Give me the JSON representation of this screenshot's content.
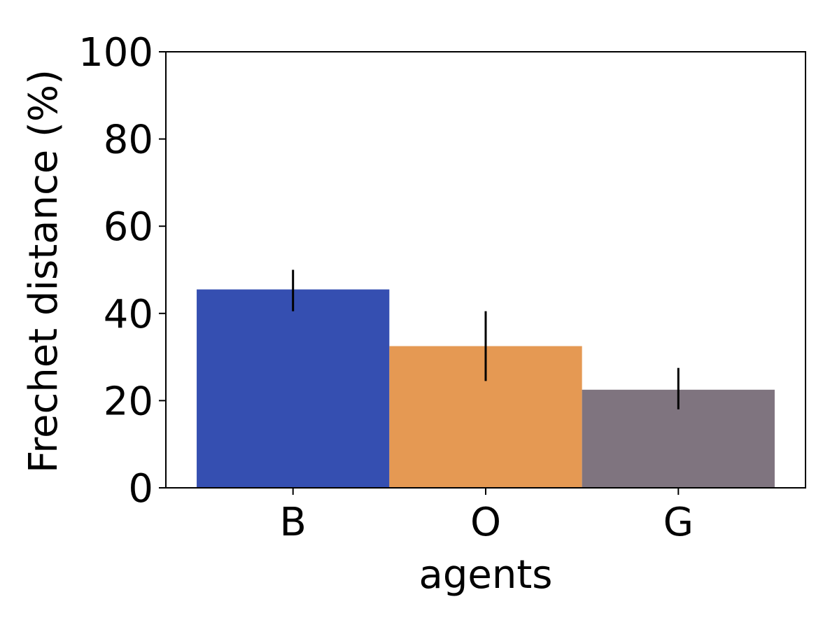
{
  "chart_data": {
    "type": "bar",
    "categories": [
      "B",
      "O",
      "G"
    ],
    "values": [
      45.5,
      32.5,
      22.5
    ],
    "errors": [
      {
        "low": 40.5,
        "high": 50.0
      },
      {
        "low": 24.5,
        "high": 40.5
      },
      {
        "low": 18.0,
        "high": 27.5
      }
    ],
    "colors": [
      "#354fb1",
      "#e59953",
      "#7f747f"
    ],
    "xlabel": "agents",
    "ylabel": "Frechet distance (%)",
    "ylim": [
      0,
      100
    ],
    "yticks": [
      0,
      20,
      40,
      60,
      80,
      100
    ],
    "grid": false,
    "legend": "none"
  }
}
